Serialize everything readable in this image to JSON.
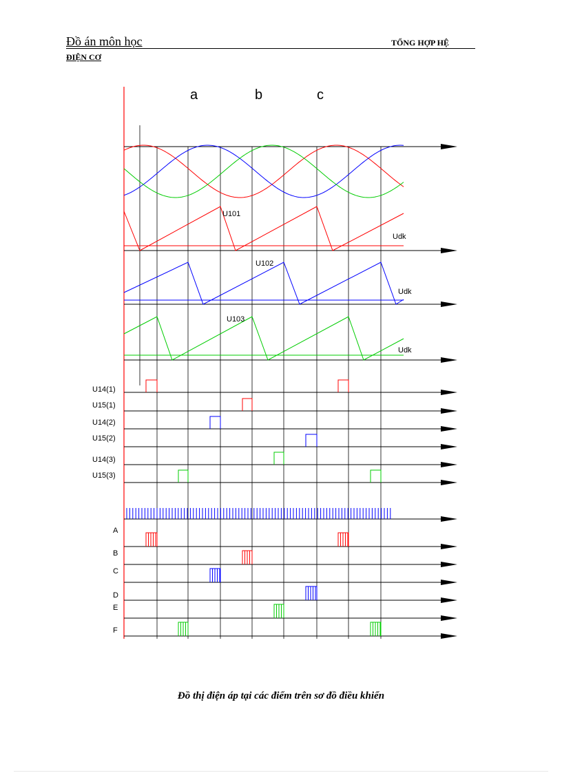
{
  "header": {
    "left_title": "Đồ án môn học",
    "left_subtitle": "ĐIỆN CƠ",
    "right_title": "TỔNG HỢP HỆ"
  },
  "diagram": {
    "phase_labels": [
      "a",
      "b",
      "c"
    ],
    "ramp_labels": [
      "U101",
      "U102",
      "U103"
    ],
    "control_labels": [
      "Udk",
      "Udk",
      "Udk"
    ],
    "pulse_row_labels": [
      "U14(1)",
      "U15(1)",
      "U14(2)",
      "U15(2)",
      "U14(3)",
      "U15(3)"
    ],
    "output_row_labels": [
      "A",
      "B",
      "C",
      "D",
      "E",
      "F"
    ],
    "colors": {
      "phase_a": "#ff0000",
      "phase_b": "#0000ff",
      "phase_c": "#00cc00",
      "axis": "#000000",
      "vertical_axis": "#ff0000"
    }
  },
  "caption": "Đồ thị điện áp tại các điểm trên sơ đồ điều khiển"
}
